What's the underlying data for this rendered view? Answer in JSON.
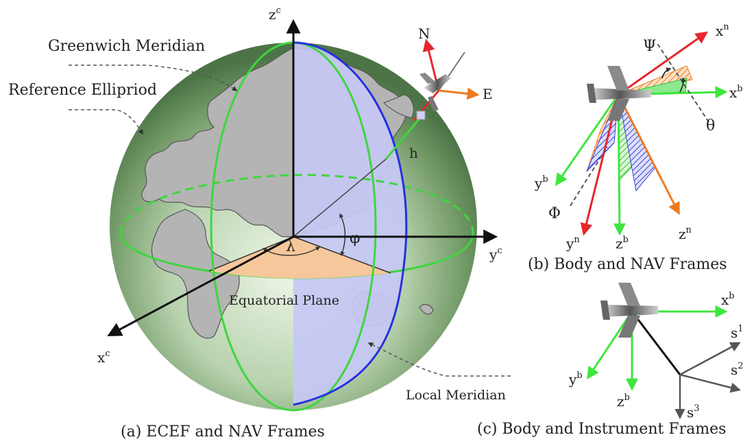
{
  "panel_a": {
    "caption": "(a) ECEF and NAV Frames",
    "greenwich": "Greenwich Meridian",
    "ellipsoid": "Reference Ellipriod",
    "zc": "z",
    "zc_sup": "c",
    "xc": "x",
    "xc_sup": "c",
    "yc": "y",
    "yc_sup": "c",
    "north": "N",
    "east": "E",
    "h": "h",
    "phi": "φ",
    "lambda": "λ",
    "equatorial": "Equatorial Plane",
    "local_meridian": "Local Meridian"
  },
  "panel_b": {
    "caption": "(b) Body and NAV Frames",
    "psi": "Ψ",
    "theta": "θ",
    "phi": "Φ",
    "xn": "x",
    "xn_sup": "n",
    "xb": "x",
    "xb_sup": "b",
    "yb": "y",
    "yb_sup": "b",
    "yn": "y",
    "yn_sup": "n",
    "zb": "z",
    "zb_sup": "b",
    "zn": "z",
    "zn_sup": "n"
  },
  "panel_c": {
    "caption": "(c) Body and Instrument Frames",
    "xb": "x",
    "xb_sup": "b",
    "yb": "y",
    "yb_sup": "b",
    "zb": "z",
    "zb_sup": "b",
    "s1": "s",
    "s1_sup": "1",
    "s2": "s",
    "s2_sup": "2",
    "s3": "s",
    "s3_sup": "3"
  },
  "colors": {
    "globe_green": "#7fae72",
    "meridian_green": "#3ed63e",
    "local_meridian_blue": "#2430e0",
    "meridian_plane": "#c6c8f4",
    "land_grey": "#b4b4b4",
    "lambda_wedge": "#f6c79b",
    "north_red": "#e8262c",
    "east_orange": "#f07a1e",
    "axis_green": "#3ee63e"
  }
}
